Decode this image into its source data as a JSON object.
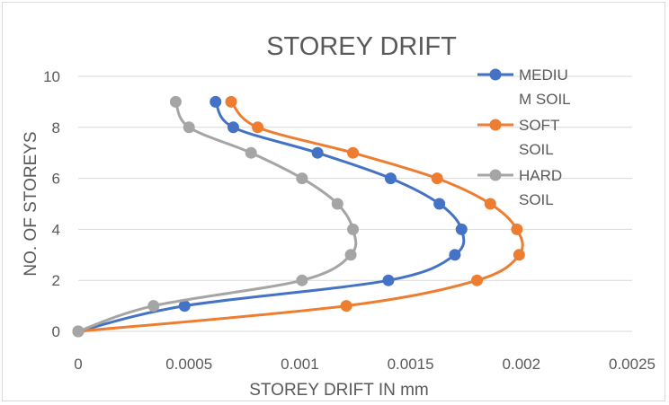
{
  "chart_data": {
    "type": "scatter",
    "title": "STOREY DRIFT",
    "xlabel": "STOREY DRIFT IN mm",
    "ylabel": "NO. OF STOREYS",
    "xlim": [
      0,
      0.0025
    ],
    "ylim": [
      0,
      10
    ],
    "x_ticks": [
      "0",
      "0.0005",
      "0.001",
      "0.0015",
      "0.002",
      "0.0025"
    ],
    "y_ticks": [
      "0",
      "2",
      "4",
      "6",
      "8",
      "10"
    ],
    "grid": "horizontal",
    "legend_position": "right",
    "series": [
      {
        "name": "MEDIUM SOIL",
        "legend_lines": [
          "MEDIU",
          "M SOIL"
        ],
        "color": "#4472c4",
        "points": [
          [
            0,
            0
          ],
          [
            0.00048,
            1
          ],
          [
            0.0014,
            2
          ],
          [
            0.0017,
            3
          ],
          [
            0.00173,
            4
          ],
          [
            0.00163,
            5
          ],
          [
            0.00141,
            6
          ],
          [
            0.00108,
            7
          ],
          [
            0.0007,
            8
          ],
          [
            0.00062,
            9
          ]
        ]
      },
      {
        "name": "SOFT SOIL",
        "legend_lines": [
          "SOFT",
          "SOIL"
        ],
        "color": "#ed7d31",
        "points": [
          [
            0,
            0
          ],
          [
            0.00121,
            1
          ],
          [
            0.0018,
            2
          ],
          [
            0.00199,
            3
          ],
          [
            0.00198,
            4
          ],
          [
            0.00186,
            5
          ],
          [
            0.00162,
            6
          ],
          [
            0.00124,
            7
          ],
          [
            0.00081,
            8
          ],
          [
            0.00069,
            9
          ]
        ]
      },
      {
        "name": "HARD SOIL",
        "legend_lines": [
          "HARD",
          "SOIL"
        ],
        "color": "#a5a5a5",
        "points": [
          [
            0,
            0
          ],
          [
            0.00034,
            1
          ],
          [
            0.00101,
            2
          ],
          [
            0.00123,
            3
          ],
          [
            0.00124,
            4
          ],
          [
            0.00117,
            5
          ],
          [
            0.00101,
            6
          ],
          [
            0.00078,
            7
          ],
          [
            0.0005,
            8
          ],
          [
            0.00044,
            9
          ]
        ]
      }
    ]
  }
}
